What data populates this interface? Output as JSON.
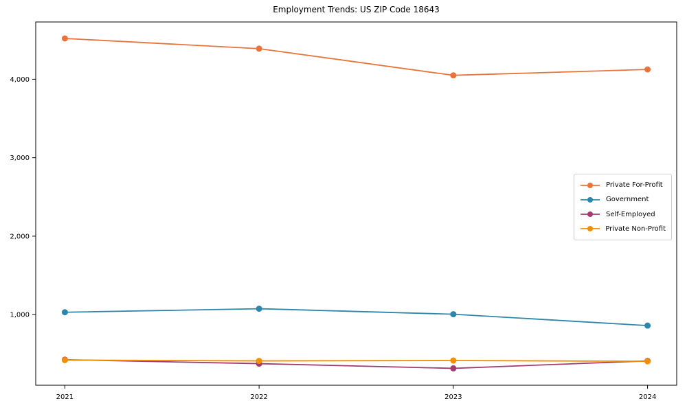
{
  "title": "Employment Trends: US ZIP Code 18643",
  "chart_data": {
    "type": "line",
    "title": "Employment Trends: US ZIP Code 18643",
    "x": [
      2021,
      2022,
      2023,
      2024
    ],
    "categories": [
      "2021",
      "2022",
      "2023",
      "2024"
    ],
    "series": [
      {
        "name": "Private For-Profit",
        "color": "#e8743b",
        "values": [
          4520,
          4390,
          4050,
          4125
        ]
      },
      {
        "name": "Government",
        "color": "#2e86ab",
        "values": [
          1030,
          1075,
          1005,
          860
        ]
      },
      {
        "name": "Self-Employed",
        "color": "#a23b72",
        "values": [
          425,
          375,
          315,
          410
        ]
      },
      {
        "name": "Private Non-Profit",
        "color": "#f18f01",
        "values": [
          420,
          410,
          415,
          405
        ]
      }
    ],
    "yticks": [
      1000,
      2000,
      3000,
      4000
    ],
    "ytick_labels": [
      "1,000",
      "2,000",
      "3,000",
      "4,000"
    ],
    "ylim": [
      100,
      4730
    ],
    "xlim": [
      2020.85,
      2024.15
    ],
    "grid": false,
    "legend_position": "center right",
    "spine_color": "#000000",
    "text_color": "#000000"
  }
}
